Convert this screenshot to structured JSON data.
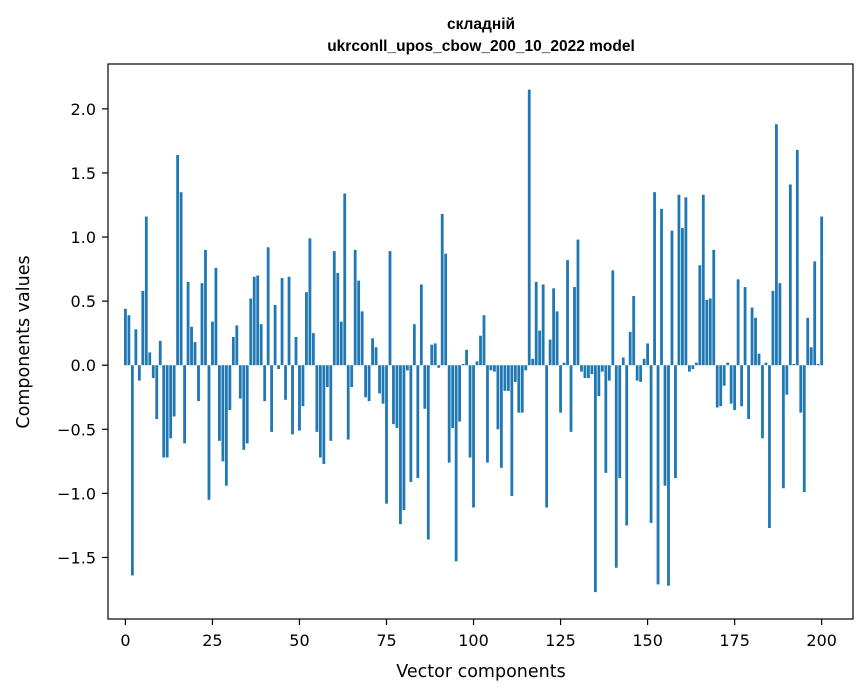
{
  "chart_data": {
    "type": "bar",
    "title_line1": "складній",
    "title_line2": "ukrconll_upos_cbow_200_10_2022 model",
    "xlabel": "Vector components",
    "ylabel": "Components values",
    "xlim": [
      -5,
      209
    ],
    "ylim": [
      -1.98,
      2.35
    ],
    "xticks": [
      0,
      25,
      50,
      75,
      100,
      125,
      150,
      175,
      200
    ],
    "yticks": [
      -1.5,
      -1.0,
      -0.5,
      0.0,
      0.5,
      1.0,
      1.5,
      2.0
    ],
    "ytick_labels": [
      "−1.5",
      "−1.0",
      "−0.5",
      "0.0",
      "0.5",
      "1.0",
      "1.5",
      "2.0"
    ],
    "bar_color": "#1f77b4",
    "values": [
      0.44,
      0.39,
      -1.64,
      0.28,
      -0.12,
      0.58,
      1.16,
      0.1,
      -0.1,
      -0.42,
      0.19,
      -0.72,
      -0.72,
      -0.57,
      -0.4,
      1.64,
      1.35,
      -0.61,
      0.65,
      0.3,
      0.18,
      -0.28,
      0.64,
      0.9,
      -1.05,
      0.34,
      0.76,
      -0.59,
      -0.75,
      -0.94,
      -0.35,
      0.22,
      0.31,
      -0.26,
      -0.66,
      -0.61,
      0.52,
      0.69,
      0.7,
      0.32,
      -0.28,
      0.92,
      -0.52,
      0.47,
      -0.03,
      0.68,
      -0.27,
      0.69,
      -0.54,
      0.22,
      -0.51,
      -0.32,
      0.57,
      0.99,
      0.25,
      -0.52,
      -0.72,
      -0.77,
      -0.17,
      -0.59,
      0.89,
      0.72,
      0.34,
      1.34,
      -0.58,
      -0.17,
      0.9,
      0.66,
      0.42,
      -0.25,
      -0.28,
      0.21,
      0.14,
      -0.22,
      -0.3,
      -1.08,
      0.89,
      -0.46,
      -0.49,
      -1.24,
      -1.13,
      -0.04,
      -0.91,
      0.32,
      -0.88,
      0.63,
      -0.34,
      -1.36,
      0.16,
      0.17,
      -0.02,
      1.18,
      0.87,
      -0.76,
      -0.49,
      -1.53,
      -0.44,
      0.01,
      0.12,
      -0.72,
      -1.11,
      0.03,
      0.23,
      0.39,
      -0.76,
      -0.04,
      -0.05,
      -0.5,
      -0.8,
      -0.2,
      -0.2,
      -1.02,
      -0.13,
      -0.37,
      -0.37,
      -0.04,
      2.15,
      0.05,
      0.65,
      0.27,
      0.63,
      -1.11,
      0.2,
      0.6,
      0.42,
      -0.37,
      0.02,
      0.82,
      -0.52,
      0.61,
      0.98,
      -0.05,
      -0.1,
      -0.1,
      -0.07,
      -1.77,
      -0.24,
      -0.05,
      -0.84,
      -0.12,
      0.74,
      -1.58,
      -0.88,
      0.06,
      -1.25,
      0.26,
      0.54,
      -0.12,
      -0.13,
      0.05,
      0.17,
      -1.23,
      1.35,
      -1.71,
      1.22,
      -0.94,
      -1.72,
      1.05,
      -0.88,
      1.33,
      1.07,
      1.31,
      -0.05,
      -0.03,
      0.02,
      0.78,
      1.33,
      0.51,
      0.52,
      0.9,
      -0.33,
      -0.32,
      -0.16,
      0.02,
      -0.3,
      -0.35,
      0.67,
      -0.32,
      0.61,
      -0.42,
      0.45,
      0.37,
      0.09,
      -0.57,
      0.02,
      -1.27,
      0.58,
      1.88,
      0.64,
      -0.96,
      -0.23,
      1.41,
      0.01,
      1.68,
      -0.37,
      -0.99,
      0.37,
      0.14,
      0.81,
      0.01,
      1.16
    ]
  }
}
